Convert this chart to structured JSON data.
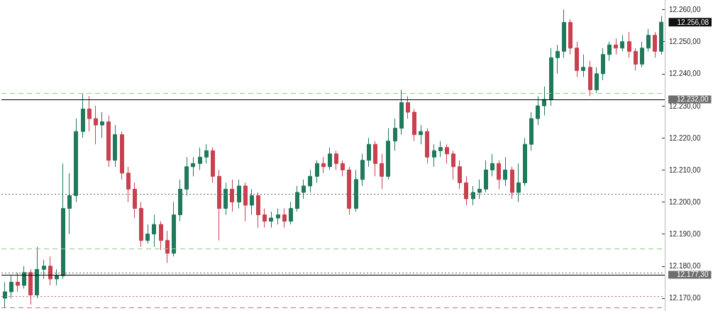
{
  "chart_data": {
    "type": "candlestick",
    "categories": [
      null,
      null,
      null,
      null,
      null,
      null,
      null,
      null,
      null,
      null,
      null,
      null,
      null,
      null,
      null,
      null,
      null,
      null,
      null,
      null,
      null,
      null,
      null,
      null,
      null,
      null,
      null,
      null,
      null,
      null,
      null,
      null,
      null,
      null,
      null,
      null,
      null,
      null,
      null,
      null,
      null,
      null,
      null,
      null,
      null,
      null,
      null,
      null,
      null,
      null,
      null,
      null,
      null,
      null,
      null,
      null,
      null,
      null,
      null,
      null,
      null,
      null,
      null,
      null,
      null,
      null,
      null,
      null,
      null,
      null,
      null,
      null,
      null,
      null,
      null,
      null,
      null,
      null,
      null,
      null,
      null,
      null,
      null,
      null,
      null,
      null,
      null,
      null,
      null,
      null,
      null,
      null,
      null,
      null,
      null,
      null,
      null,
      null,
      null,
      null,
      null,
      null
    ],
    "ohlc": [
      [
        12170,
        12175,
        12167,
        12172
      ],
      [
        12172,
        12177,
        12170,
        12175
      ],
      [
        12175,
        12178,
        12172,
        12174
      ],
      [
        12174,
        12180,
        12173,
        12178
      ],
      [
        12178,
        12179,
        12168,
        12171
      ],
      [
        12171,
        12186,
        12170,
        12179
      ],
      [
        12179,
        12182,
        12176,
        12180
      ],
      [
        12180,
        12183,
        12174,
        12176
      ],
      [
        12176,
        12179,
        12174,
        12177
      ],
      [
        12177,
        12212,
        12176,
        12198
      ],
      [
        12198,
        12209,
        12190,
        12202
      ],
      [
        12202,
        12226,
        12200,
        12222
      ],
      [
        12222,
        12234,
        12220,
        12229
      ],
      [
        12229,
        12233,
        12222,
        12226
      ],
      [
        12226,
        12230,
        12218,
        12224
      ],
      [
        12224,
        12228,
        12220,
        12225
      ],
      [
        12225,
        12227,
        12211,
        12213
      ],
      [
        12213,
        12224,
        12211,
        12221
      ],
      [
        12221,
        12222,
        12207,
        12209
      ],
      [
        12209,
        12211,
        12200,
        12204
      ],
      [
        12204,
        12206,
        12195,
        12198
      ],
      [
        12198,
        12200,
        12186,
        12188
      ],
      [
        12188,
        12193,
        12187,
        12190
      ],
      [
        12190,
        12196,
        12186,
        12193
      ],
      [
        12193,
        12194,
        12185,
        12188
      ],
      [
        12188,
        12191,
        12181,
        12184
      ],
      [
        12184,
        12200,
        12183,
        12196
      ],
      [
        12196,
        12207,
        12194,
        12204
      ],
      [
        12204,
        12214,
        12202,
        12211
      ],
      [
        12211,
        12214,
        12208,
        12212
      ],
      [
        12212,
        12217,
        12210,
        12214
      ],
      [
        12214,
        12218,
        12212,
        12216
      ],
      [
        12216,
        12217,
        12206,
        12208
      ],
      [
        12208,
        12210,
        12188,
        12198
      ],
      [
        12198,
        12206,
        12196,
        12204
      ],
      [
        12204,
        12207,
        12197,
        12200
      ],
      [
        12200,
        12207,
        12198,
        12205
      ],
      [
        12205,
        12206,
        12194,
        12199
      ],
      [
        12199,
        12204,
        12196,
        12202
      ],
      [
        12202,
        12203,
        12192,
        12196
      ],
      [
        12196,
        12198,
        12192,
        12194
      ],
      [
        12194,
        12197,
        12192,
        12195
      ],
      [
        12195,
        12198,
        12193,
        12196
      ],
      [
        12196,
        12198,
        12192,
        12194
      ],
      [
        12194,
        12200,
        12193,
        12198
      ],
      [
        12198,
        12205,
        12197,
        12203
      ],
      [
        12203,
        12207,
        12201,
        12205
      ],
      [
        12205,
        12210,
        12203,
        12208
      ],
      [
        12208,
        12213,
        12206,
        12212
      ],
      [
        12212,
        12214,
        12209,
        12211
      ],
      [
        12211,
        12217,
        12210,
        12215
      ],
      [
        12215,
        12216,
        12210,
        12212
      ],
      [
        12212,
        12213,
        12208,
        12210
      ],
      [
        12210,
        12211,
        12196,
        12198
      ],
      [
        12198,
        12210,
        12197,
        12207
      ],
      [
        12207,
        12215,
        12205,
        12213
      ],
      [
        12213,
        12220,
        12211,
        12218
      ],
      [
        12218,
        12219,
        12208,
        12212
      ],
      [
        12212,
        12215,
        12204,
        12208
      ],
      [
        12208,
        12223,
        12207,
        12219
      ],
      [
        12219,
        12226,
        12216,
        12223
      ],
      [
        12223,
        12235,
        12221,
        12231
      ],
      [
        12231,
        12233,
        12226,
        12228
      ],
      [
        12228,
        12229,
        12219,
        12221
      ],
      [
        12221,
        12224,
        12218,
        12222
      ],
      [
        12222,
        12223,
        12212,
        12214
      ],
      [
        12214,
        12218,
        12211,
        12216
      ],
      [
        12216,
        12219,
        12214,
        12217
      ],
      [
        12217,
        12218,
        12212,
        12215
      ],
      [
        12215,
        12216,
        12207,
        12211
      ],
      [
        12211,
        12213,
        12204,
        12206
      ],
      [
        12206,
        12208,
        12199,
        12201
      ],
      [
        12201,
        12205,
        12199,
        12203
      ],
      [
        12203,
        12207,
        12201,
        12204
      ],
      [
        12204,
        12213,
        12203,
        12210
      ],
      [
        12210,
        12215,
        12208,
        12212
      ],
      [
        12212,
        12213,
        12204,
        12207
      ],
      [
        12207,
        12214,
        12205,
        12210
      ],
      [
        12210,
        12211,
        12201,
        12203
      ],
      [
        12203,
        12212,
        12200,
        12206
      ],
      [
        12206,
        12220,
        12205,
        12218
      ],
      [
        12218,
        12228,
        12216,
        12226
      ],
      [
        12226,
        12233,
        12224,
        12230
      ],
      [
        12230,
        12236,
        12227,
        12232
      ],
      [
        12232,
        12248,
        12230,
        12245
      ],
      [
        12245,
        12249,
        12240,
        12247
      ],
      [
        12247,
        12260,
        12245,
        12256
      ],
      [
        12256,
        12257,
        12246,
        12248
      ],
      [
        12248,
        12250,
        12239,
        12241
      ],
      [
        12241,
        12246,
        12239,
        12242
      ],
      [
        12242,
        12244,
        12233,
        12235
      ],
      [
        12235,
        12242,
        12234,
        12240
      ],
      [
        12240,
        12248,
        12238,
        12246
      ],
      [
        12246,
        12250,
        12244,
        12249
      ],
      [
        12249,
        12251,
        12246,
        12248
      ],
      [
        12248,
        12252,
        12247,
        12250
      ],
      [
        12250,
        12253,
        12245,
        12247
      ],
      [
        12247,
        12248,
        12241,
        12243
      ],
      [
        12243,
        12250,
        12242,
        12248
      ],
      [
        12248,
        12254,
        12247,
        12252
      ],
      [
        12252,
        12253,
        12245,
        12247
      ],
      [
        12247,
        12258,
        12246,
        12256.08
      ]
    ],
    "colors": [
      "#1f7a5c",
      "#1f7a5c",
      "#c8414f",
      "#1f7a5c",
      "#c8414f",
      "#1f7a5c",
      "#1f7a5c",
      "#c8414f",
      "#1f7a5c",
      "#1f7a5c",
      "#1f7a5c",
      "#1f7a5c",
      "#1f7a5c",
      "#c8414f",
      "#c8414f",
      "#1f7a5c",
      "#c8414f",
      "#1f7a5c",
      "#c8414f",
      "#c8414f",
      "#c8414f",
      "#c8414f",
      "#1f7a5c",
      "#1f7a5c",
      "#c8414f",
      "#c8414f",
      "#1f7a5c",
      "#1f7a5c",
      "#1f7a5c",
      "#1f7a5c",
      "#1f7a5c",
      "#1f7a5c",
      "#c8414f",
      "#c8414f",
      "#1f7a5c",
      "#c8414f",
      "#1f7a5c",
      "#c8414f",
      "#1f7a5c",
      "#c8414f",
      "#c8414f",
      "#1f7a5c",
      "#1f7a5c",
      "#c8414f",
      "#1f7a5c",
      "#1f7a5c",
      "#1f7a5c",
      "#1f7a5c",
      "#1f7a5c",
      "#c8414f",
      "#1f7a5c",
      "#c8414f",
      "#c8414f",
      "#c8414f",
      "#1f7a5c",
      "#1f7a5c",
      "#1f7a5c",
      "#c8414f",
      "#c8414f",
      "#1f7a5c",
      "#1f7a5c",
      "#1f7a5c",
      "#c8414f",
      "#c8414f",
      "#1f7a5c",
      "#c8414f",
      "#1f7a5c",
      "#1f7a5c",
      "#c8414f",
      "#c8414f",
      "#c8414f",
      "#c8414f",
      "#1f7a5c",
      "#1f7a5c",
      "#1f7a5c",
      "#1f7a5c",
      "#c8414f",
      "#1f7a5c",
      "#c8414f",
      "#1f7a5c",
      "#1f7a5c",
      "#1f7a5c",
      "#1f7a5c",
      "#1f7a5c",
      "#1f7a5c",
      "#1f7a5c",
      "#1f7a5c",
      "#c8414f",
      "#c8414f",
      "#1f7a5c",
      "#c8414f",
      "#1f7a5c",
      "#1f7a5c",
      "#1f7a5c",
      "#c8414f",
      "#1f7a5c",
      "#c8414f",
      "#c8414f",
      "#1f7a5c",
      "#1f7a5c",
      "#c8414f",
      "#1f7a5c"
    ],
    "ylim": [
      12166,
      12263
    ],
    "yticks": [
      {
        "value": 12170,
        "label": "12.170,00"
      },
      {
        "value": 12180,
        "label": "12.180,00"
      },
      {
        "value": 12190,
        "label": "12.190,00"
      },
      {
        "value": 12200,
        "label": "12.200,00"
      },
      {
        "value": 12210,
        "label": "12.210,00"
      },
      {
        "value": 12220,
        "label": "12.220,00"
      },
      {
        "value": 12230,
        "label": "12.230,00"
      },
      {
        "value": 12240,
        "label": "12.240,00"
      },
      {
        "value": 12250,
        "label": "12.250,00"
      },
      {
        "value": 12260,
        "label": "12.260,00"
      }
    ],
    "tick_labels": "y",
    "ref_lines": [
      {
        "axis": "y",
        "value": 12232,
        "label": "12.232,00",
        "color": "#000000",
        "line_style": "solid"
      },
      {
        "axis": "y",
        "value": 12177.3,
        "label": "12.177,30",
        "color": "#000000",
        "line_style": "solid"
      },
      {
        "axis": "y",
        "value": 12234,
        "color": "#90cc8c",
        "line_style": "dashed"
      },
      {
        "axis": "y",
        "value": 12185.5,
        "color": "#90cc8c",
        "line_style": "dashed"
      },
      {
        "axis": "y",
        "value": 12202.5,
        "color": "#666666",
        "line_style": "dotted"
      },
      {
        "axis": "y",
        "value": 12178,
        "color": "#666666",
        "line_style": "dotted"
      },
      {
        "axis": "y",
        "value": 12170.5,
        "color": "#c0607a",
        "line_style": "dotted"
      },
      {
        "axis": "y",
        "value": 12167,
        "color": "#d06f86",
        "line_style": "dashed"
      }
    ],
    "annotations": [
      "12.256,08"
    ]
  }
}
